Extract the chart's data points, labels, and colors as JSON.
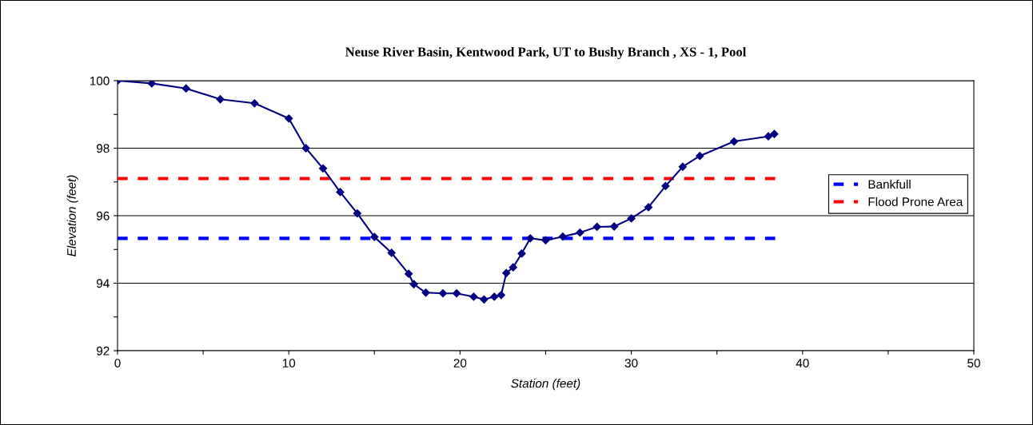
{
  "chart_data": {
    "type": "line",
    "title": "Neuse River Basin, Kentwood Park, UT to Bushy Branch , XS - 1, Pool",
    "xlabel": "Station (feet)",
    "ylabel": "Elevation (feet)",
    "xlim": [
      0,
      50
    ],
    "xticks": [
      0,
      {
        "value": 5,
        "label": null
      },
      10,
      {
        "value": 15,
        "label": null
      },
      20,
      {
        "value": 25,
        "label": null
      },
      30,
      {
        "value": 35,
        "label": null
      },
      40,
      {
        "value": 45,
        "label": null
      },
      50
    ],
    "ylim": [
      92,
      100
    ],
    "yticks": [
      92,
      {
        "value": 93,
        "label": null
      },
      94,
      {
        "value": 95,
        "label": null
      },
      96,
      {
        "value": 97,
        "label": null
      },
      98,
      {
        "value": 99,
        "label": null
      },
      100
    ],
    "grid": "y",
    "legend": "right",
    "series": [
      {
        "color": "#000080",
        "marker": "diamond",
        "line_style": "solid",
        "x": [
          0,
          2,
          4,
          6,
          8,
          10,
          11,
          12,
          13,
          14,
          15,
          16,
          17,
          17.3,
          18,
          19,
          19.8,
          20.8,
          21.4,
          22,
          22.4,
          22.7,
          23.1,
          23.6,
          24.1,
          25,
          26,
          27,
          28,
          29,
          30,
          31,
          32,
          33,
          34,
          36,
          38,
          38.35
        ],
        "values": [
          100,
          99.92,
          99.77,
          99.45,
          99.33,
          98.88,
          98.0,
          97.4,
          96.7,
          96.07,
          95.37,
          94.9,
          94.28,
          93.97,
          93.72,
          93.7,
          93.7,
          93.6,
          93.52,
          93.6,
          93.65,
          94.3,
          94.47,
          94.88,
          95.33,
          95.27,
          95.38,
          95.5,
          95.67,
          95.68,
          95.92,
          96.25,
          96.88,
          97.45,
          97.77,
          98.2,
          98.35,
          98.42
        ]
      },
      {
        "name": "Bankfull",
        "color": "#0000ff",
        "marker": "none",
        "line_style": "dashed",
        "x": [
          0,
          38.4
        ],
        "values": [
          95.33,
          95.33
        ]
      },
      {
        "name": "Flood Prone Area",
        "color": "#ff0000",
        "marker": "none",
        "line_style": "dashed",
        "x": [
          0,
          38.4
        ],
        "values": [
          97.1,
          97.1
        ]
      }
    ]
  }
}
